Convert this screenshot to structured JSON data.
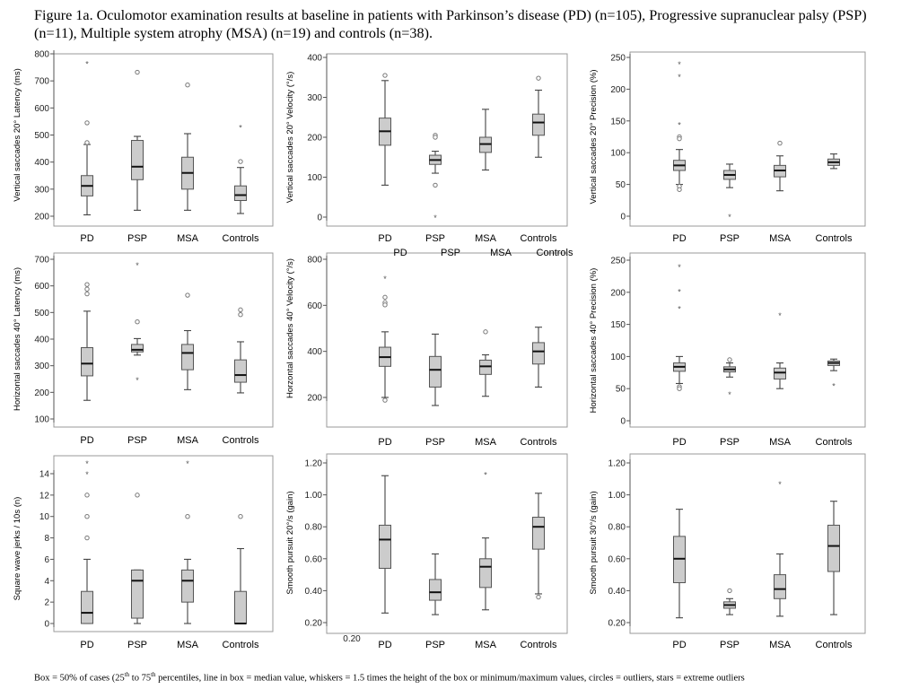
{
  "caption": "Figure 1a. Oculomotor examination results at baseline in patients with Parkinson’s disease (PD) (n=105), Progressive supranuclear palsy (PSP) (n=11), Multiple system atrophy (MSA) (n=19) and controls (n=38).",
  "footnote": {
    "part1": "Box = 50% of cases (25",
    "sup1": "th",
    "part2": " to 75",
    "sup2": "th",
    "part3": " percentiles, line in box = median value,  whiskers = 1.5 times the height of the box or minimum/maximum values, circles = outliers, stars = extreme outliers"
  },
  "stray_labels": {
    "vel20_dup_categories": [
      "PD",
      "PSP",
      "MSA",
      "Controls"
    ],
    "sp20_extra_tick": "0.20"
  },
  "chart_data": [
    {
      "type": "box",
      "ylabel": "Vertical saccades 20° Latency (ms)",
      "ylim": [
        190,
        810
      ],
      "yticks": [
        200,
        300,
        400,
        500,
        600,
        700,
        800
      ],
      "categories": [
        "PD",
        "PSP",
        "MSA",
        "Controls"
      ],
      "boxes": [
        {
          "min": 205,
          "q1": 275,
          "median": 312,
          "q3": 350,
          "max": 465
        },
        {
          "min": 222,
          "q1": 335,
          "median": 383,
          "q3": 480,
          "max": 495
        },
        {
          "min": 222,
          "q1": 300,
          "median": 360,
          "q3": 418,
          "max": 505
        },
        {
          "min": 210,
          "q1": 258,
          "median": 278,
          "q3": 312,
          "max": 380
        }
      ],
      "outliers": [
        {
          "group": 0,
          "value": 765,
          "kind": "extreme"
        },
        {
          "group": 0,
          "value": 545,
          "kind": "outlier"
        },
        {
          "group": 0,
          "value": 472,
          "kind": "outlier"
        },
        {
          "group": 1,
          "value": 732,
          "kind": "outlier"
        },
        {
          "group": 2,
          "value": 685,
          "kind": "outlier"
        },
        {
          "group": 3,
          "value": 530,
          "kind": "extreme"
        },
        {
          "group": 3,
          "value": 402,
          "kind": "outlier"
        }
      ]
    },
    {
      "type": "box",
      "ylabel": "Vertical saccades 20° Velocity (°/s)",
      "ylim": [
        -10,
        410
      ],
      "yticks": [
        0,
        100,
        200,
        300,
        400
      ],
      "categories": [
        "PD",
        "PSP",
        "MSA",
        "Controls"
      ],
      "boxes": [
        {
          "min": 80,
          "q1": 180,
          "median": 215,
          "q3": 248,
          "max": 342
        },
        {
          "min": 110,
          "q1": 132,
          "median": 143,
          "q3": 155,
          "max": 165
        },
        {
          "min": 118,
          "q1": 162,
          "median": 183,
          "q3": 200,
          "max": 270
        },
        {
          "min": 150,
          "q1": 205,
          "median": 237,
          "q3": 258,
          "max": 318
        }
      ],
      "outliers": [
        {
          "group": 0,
          "value": 355,
          "kind": "outlier"
        },
        {
          "group": 1,
          "value": 205,
          "kind": "outlier"
        },
        {
          "group": 1,
          "value": 200,
          "kind": "outlier"
        },
        {
          "group": 1,
          "value": 80,
          "kind": "outlier"
        },
        {
          "group": 1,
          "value": 0,
          "kind": "extreme"
        },
        {
          "group": 3,
          "value": 348,
          "kind": "outlier"
        }
      ]
    },
    {
      "type": "box",
      "ylabel": "Vertical saccades 20° Precision (%)",
      "ylim": [
        -5,
        255
      ],
      "yticks": [
        0,
        50,
        100,
        150,
        200,
        250
      ],
      "categories": [
        "PD",
        "PSP",
        "MSA",
        "Controls"
      ],
      "boxes": [
        {
          "min": 50,
          "q1": 72,
          "median": 80,
          "q3": 88,
          "max": 105
        },
        {
          "min": 45,
          "q1": 58,
          "median": 65,
          "q3": 72,
          "max": 82
        },
        {
          "min": 40,
          "q1": 62,
          "median": 72,
          "q3": 80,
          "max": 95
        },
        {
          "min": 75,
          "q1": 80,
          "median": 85,
          "q3": 90,
          "max": 98
        }
      ],
      "outliers": [
        {
          "group": 0,
          "value": 240,
          "kind": "extreme"
        },
        {
          "group": 0,
          "value": 220,
          "kind": "extreme"
        },
        {
          "group": 0,
          "value": 145,
          "kind": "extreme"
        },
        {
          "group": 0,
          "value": 125,
          "kind": "outlier"
        },
        {
          "group": 0,
          "value": 122,
          "kind": "outlier"
        },
        {
          "group": 0,
          "value": 47,
          "kind": "outlier"
        },
        {
          "group": 0,
          "value": 42,
          "kind": "outlier"
        },
        {
          "group": 1,
          "value": 0,
          "kind": "extreme"
        },
        {
          "group": 2,
          "value": 115,
          "kind": "outlier"
        }
      ]
    },
    {
      "type": "box",
      "ylabel": "Horizontal saccades 40° Latency (ms)",
      "ylim": [
        90,
        710
      ],
      "yticks": [
        100,
        200,
        300,
        400,
        500,
        600,
        700
      ],
      "categories": [
        "PD",
        "PSP",
        "MSA",
        "Controls"
      ],
      "boxes": [
        {
          "min": 170,
          "q1": 262,
          "median": 308,
          "q3": 368,
          "max": 505
        },
        {
          "min": 340,
          "q1": 352,
          "median": 360,
          "q3": 380,
          "max": 402
        },
        {
          "min": 210,
          "q1": 285,
          "median": 348,
          "q3": 380,
          "max": 432
        },
        {
          "min": 198,
          "q1": 238,
          "median": 265,
          "q3": 322,
          "max": 390
        }
      ],
      "outliers": [
        {
          "group": 0,
          "value": 605,
          "kind": "outlier"
        },
        {
          "group": 0,
          "value": 588,
          "kind": "outlier"
        },
        {
          "group": 0,
          "value": 570,
          "kind": "outlier"
        },
        {
          "group": 1,
          "value": 680,
          "kind": "extreme"
        },
        {
          "group": 1,
          "value": 465,
          "kind": "outlier"
        },
        {
          "group": 1,
          "value": 248,
          "kind": "extreme"
        },
        {
          "group": 2,
          "value": 565,
          "kind": "outlier"
        },
        {
          "group": 3,
          "value": 510,
          "kind": "outlier"
        },
        {
          "group": 3,
          "value": 492,
          "kind": "outlier"
        }
      ]
    },
    {
      "type": "box",
      "ylabel": "Horzontal saccades 40° Velocity (°/s)",
      "ylim": [
        130,
        820
      ],
      "yticks": [
        200,
        400,
        600,
        800
      ],
      "categories": [
        "PD",
        "PSP",
        "MSA",
        "Controls"
      ],
      "boxes": [
        {
          "min": 200,
          "q1": 335,
          "median": 375,
          "q3": 418,
          "max": 485
        },
        {
          "min": 165,
          "q1": 245,
          "median": 320,
          "q3": 378,
          "max": 475
        },
        {
          "min": 205,
          "q1": 300,
          "median": 335,
          "q3": 362,
          "max": 385
        },
        {
          "min": 245,
          "q1": 345,
          "median": 400,
          "q3": 438,
          "max": 505
        }
      ],
      "outliers": [
        {
          "group": 0,
          "value": 718,
          "kind": "extreme"
        },
        {
          "group": 0,
          "value": 635,
          "kind": "outlier"
        },
        {
          "group": 0,
          "value": 612,
          "kind": "outlier"
        },
        {
          "group": 0,
          "value": 602,
          "kind": "outlier"
        },
        {
          "group": 0,
          "value": 188,
          "kind": "outlier"
        },
        {
          "group": 2,
          "value": 485,
          "kind": "outlier"
        }
      ]
    },
    {
      "type": "box",
      "ylabel": "Horizontal saccades 40° Precision (%)",
      "ylim": [
        -5,
        255
      ],
      "yticks": [
        0,
        50,
        100,
        150,
        200,
        250
      ],
      "categories": [
        "PD",
        "PSP",
        "MSA",
        "Controls"
      ],
      "boxes": [
        {
          "min": 58,
          "q1": 77,
          "median": 84,
          "q3": 90,
          "max": 100
        },
        {
          "min": 68,
          "q1": 76,
          "median": 80,
          "q3": 84,
          "max": 90
        },
        {
          "min": 50,
          "q1": 65,
          "median": 75,
          "q3": 82,
          "max": 90
        },
        {
          "min": 78,
          "q1": 86,
          "median": 90,
          "q3": 93,
          "max": 96
        }
      ],
      "outliers": [
        {
          "group": 0,
          "value": 240,
          "kind": "extreme"
        },
        {
          "group": 0,
          "value": 202,
          "kind": "extreme"
        },
        {
          "group": 0,
          "value": 175,
          "kind": "extreme"
        },
        {
          "group": 0,
          "value": 53,
          "kind": "outlier"
        },
        {
          "group": 0,
          "value": 50,
          "kind": "outlier"
        },
        {
          "group": 1,
          "value": 95,
          "kind": "outlier"
        },
        {
          "group": 1,
          "value": 42,
          "kind": "extreme"
        },
        {
          "group": 2,
          "value": 165,
          "kind": "extreme"
        },
        {
          "group": 3,
          "value": 55,
          "kind": "extreme"
        }
      ]
    },
    {
      "type": "box",
      "ylabel": "Square wave jerks / 10s (n)",
      "ylim": [
        -0.8,
        15.5
      ],
      "yticks": [
        0,
        2,
        4,
        6,
        8,
        10,
        12,
        14
      ],
      "categories": [
        "PD",
        "PSP",
        "MSA",
        "Controls"
      ],
      "boxes": [
        {
          "min": 0,
          "q1": 0,
          "median": 1,
          "q3": 3,
          "max": 6
        },
        {
          "min": 0,
          "q1": 0.5,
          "median": 4,
          "q3": 5,
          "max": 5
        },
        {
          "min": 0,
          "q1": 2,
          "median": 4,
          "q3": 5,
          "max": 6
        },
        {
          "min": 0,
          "q1": 0,
          "median": 0,
          "q3": 3,
          "max": 7
        }
      ],
      "outliers": [
        {
          "group": 0,
          "value": 15,
          "kind": "extreme"
        },
        {
          "group": 0,
          "value": 14,
          "kind": "extreme"
        },
        {
          "group": 0,
          "value": 12,
          "kind": "outlier"
        },
        {
          "group": 0,
          "value": 10,
          "kind": "outlier"
        },
        {
          "group": 0,
          "value": 8,
          "kind": "outlier"
        },
        {
          "group": 1,
          "value": 12,
          "kind": "outlier"
        },
        {
          "group": 2,
          "value": 15,
          "kind": "extreme"
        },
        {
          "group": 2,
          "value": 10,
          "kind": "outlier"
        },
        {
          "group": 3,
          "value": 10,
          "kind": "outlier"
        }
      ]
    },
    {
      "type": "box",
      "ylabel": "Smooth pursuit 20°/s (gain)",
      "ylim": [
        0.18,
        1.23
      ],
      "yticks": [
        0.2,
        0.4,
        0.6,
        0.8,
        1.0,
        1.2
      ],
      "ytick_labels": [
        "0.20",
        "0.40",
        "0.60",
        "0.80",
        "1.00",
        "1.20"
      ],
      "categories": [
        "PD",
        "PSP",
        "MSA",
        "Controls"
      ],
      "boxes": [
        {
          "min": 0.26,
          "q1": 0.54,
          "median": 0.72,
          "q3": 0.81,
          "max": 1.12
        },
        {
          "min": 0.25,
          "q1": 0.34,
          "median": 0.39,
          "q3": 0.47,
          "max": 0.63
        },
        {
          "min": 0.28,
          "q1": 0.42,
          "median": 0.55,
          "q3": 0.6,
          "max": 0.73
        },
        {
          "min": 0.38,
          "q1": 0.66,
          "median": 0.8,
          "q3": 0.86,
          "max": 1.01
        }
      ],
      "outliers": [
        {
          "group": 2,
          "value": 1.13,
          "kind": "extreme"
        },
        {
          "group": 3,
          "value": 0.36,
          "kind": "outlier"
        }
      ]
    },
    {
      "type": "box",
      "ylabel": "Smooth pursuit 30°/s (gain)",
      "ylim": [
        0.18,
        1.23
      ],
      "yticks": [
        0.2,
        0.4,
        0.6,
        0.8,
        1.0,
        1.2
      ],
      "ytick_labels": [
        "0.20",
        "0.40",
        "0.60",
        "0.80",
        "1.00",
        "1.20"
      ],
      "categories": [
        "PD",
        "PSP",
        "MSA",
        "Controls"
      ],
      "boxes": [
        {
          "min": 0.23,
          "q1": 0.45,
          "median": 0.6,
          "q3": 0.74,
          "max": 0.91
        },
        {
          "min": 0.25,
          "q1": 0.29,
          "median": 0.31,
          "q3": 0.33,
          "max": 0.35
        },
        {
          "min": 0.24,
          "q1": 0.35,
          "median": 0.41,
          "q3": 0.5,
          "max": 0.63
        },
        {
          "min": 0.25,
          "q1": 0.52,
          "median": 0.68,
          "q3": 0.81,
          "max": 0.96
        }
      ],
      "outliers": [
        {
          "group": 1,
          "value": 0.4,
          "kind": "outlier"
        },
        {
          "group": 2,
          "value": 1.07,
          "kind": "extreme"
        }
      ]
    }
  ]
}
